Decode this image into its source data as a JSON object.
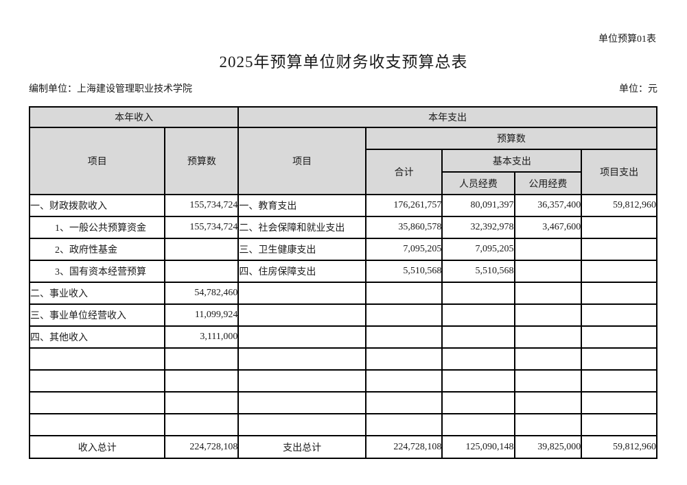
{
  "page": {
    "corner_label": "单位预算01表",
    "title": "2025年预算单位财务收支预算总表",
    "prepared_by": "编制单位：上海建设管理职业技术学院",
    "unit_label": "单位：元"
  },
  "table": {
    "header": {
      "income_group": "本年收入",
      "expense_group": "本年支出",
      "income_item": "项目",
      "income_budget": "预算数",
      "expense_item": "项目",
      "expense_budget": "预算数",
      "total_col": "合计",
      "basic_expense": "基本支出",
      "personnel": "人员经费",
      "public": "公用经费",
      "project_expense": "项目支出"
    },
    "rows": [
      {
        "indent": false,
        "cells": [
          "一、财政拨款收入",
          "155,734,724",
          "一、教育支出",
          "176,261,757",
          "80,091,397",
          "36,357,400",
          "59,812,960"
        ]
      },
      {
        "indent": true,
        "cells": [
          "1、一般公共预算资金",
          "155,734,724",
          "二、社会保障和就业支出",
          "35,860,578",
          "32,392,978",
          "3,467,600",
          ""
        ]
      },
      {
        "indent": true,
        "cells": [
          "2、政府性基金",
          "",
          "三、卫生健康支出",
          "7,095,205",
          "7,095,205",
          "",
          ""
        ]
      },
      {
        "indent": true,
        "cells": [
          "3、国有资本经营预算",
          "",
          "四、住房保障支出",
          "5,510,568",
          "5,510,568",
          "",
          ""
        ]
      },
      {
        "indent": false,
        "cells": [
          "二、事业收入",
          "54,782,460",
          "",
          "",
          "",
          "",
          ""
        ]
      },
      {
        "indent": false,
        "cells": [
          "三、事业单位经营收入",
          "11,099,924",
          "",
          "",
          "",
          "",
          ""
        ]
      },
      {
        "indent": false,
        "cells": [
          "四、其他收入",
          "3,111,000",
          "",
          "",
          "",
          "",
          ""
        ]
      },
      {
        "indent": false,
        "cells": [
          "",
          "",
          "",
          "",
          "",
          "",
          ""
        ]
      },
      {
        "indent": false,
        "cells": [
          "",
          "",
          "",
          "",
          "",
          "",
          ""
        ]
      },
      {
        "indent": false,
        "cells": [
          "",
          "",
          "",
          "",
          "",
          "",
          ""
        ]
      },
      {
        "indent": false,
        "cells": [
          "",
          "",
          "",
          "",
          "",
          "",
          ""
        ]
      }
    ],
    "totals": {
      "cells": [
        "收入总计",
        "224,728,108",
        "支出总计",
        "224,728,108",
        "125,090,148",
        "39,825,000",
        "59,812,960"
      ]
    }
  },
  "colors": {
    "header_bg": "#d9d9d9",
    "border": "#000000",
    "text": "#1a1a1a",
    "page_bg": "#ffffff"
  }
}
